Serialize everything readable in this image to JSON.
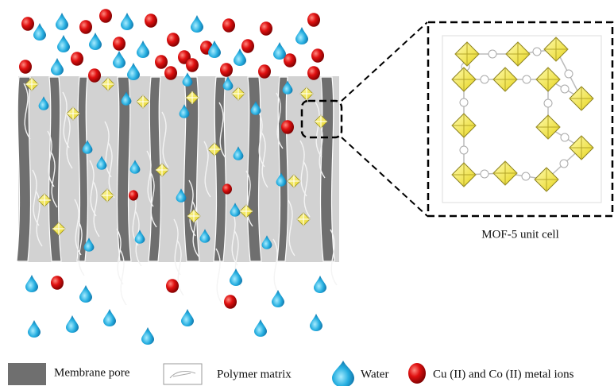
{
  "inset": {
    "caption": "MOF-5 unit cell"
  },
  "legend": [
    {
      "label": "Membrane pore"
    },
    {
      "label": "Polymer matrix"
    },
    {
      "label": "Water"
    },
    {
      "label": "Cu (II) and Co (II) metal ions"
    }
  ]
}
